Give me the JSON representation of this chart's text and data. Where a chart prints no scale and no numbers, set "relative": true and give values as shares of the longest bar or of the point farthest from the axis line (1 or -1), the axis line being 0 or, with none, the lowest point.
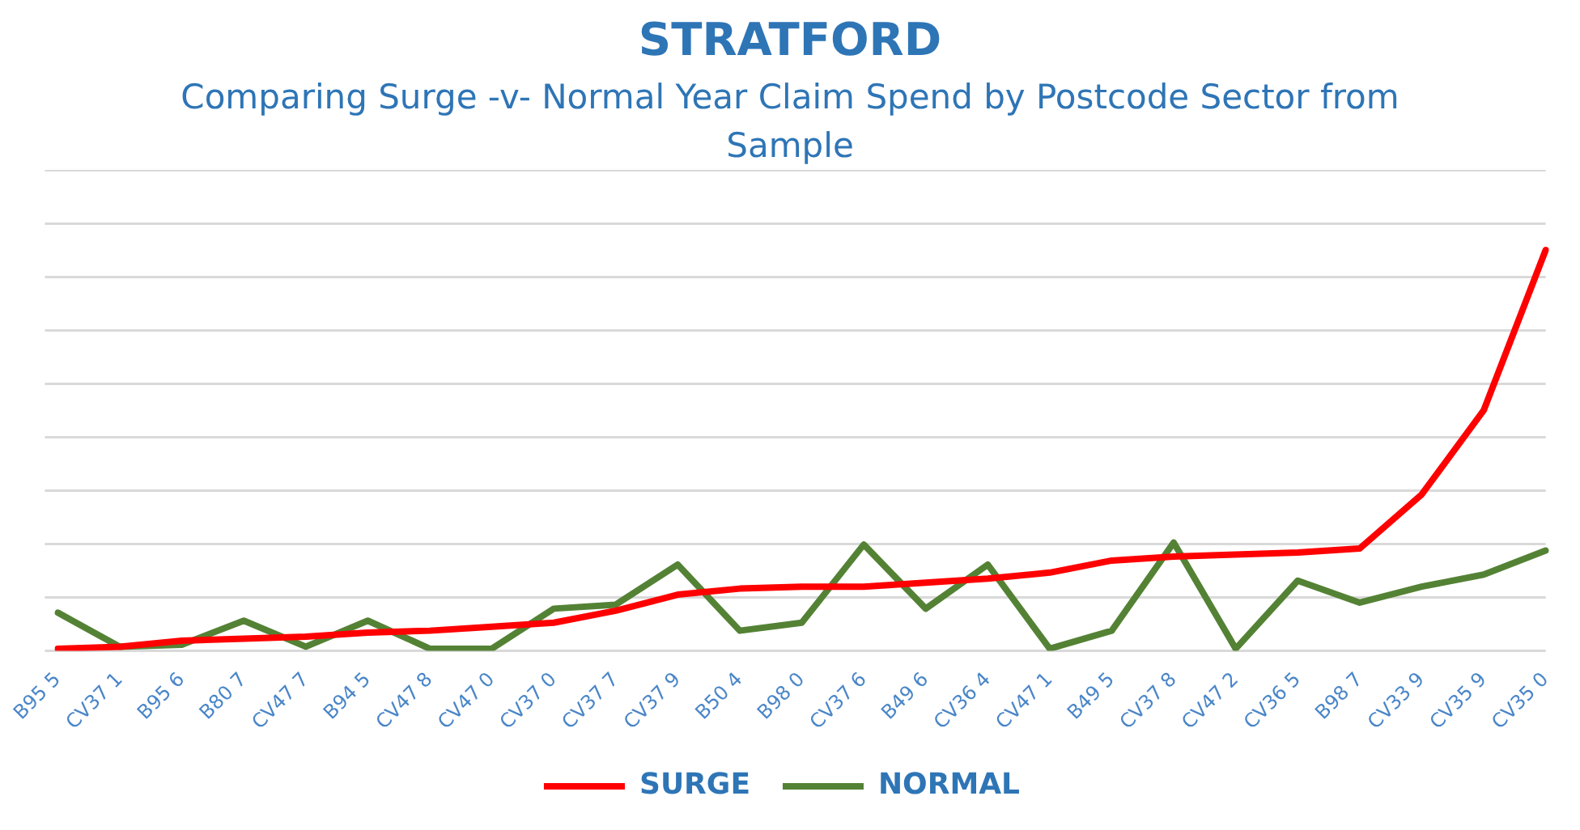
{
  "chart_data": {
    "type": "line",
    "title": "STRATFORD",
    "subtitle": "Comparing Surge -v- Normal Year Claim Spend by Postcode Sector from Sample",
    "categories": [
      "B95 5",
      "CV37 1",
      "B95 6",
      "B80 7",
      "CV47 7",
      "B94 5",
      "CV47 8",
      "CV47 0",
      "CV37 0",
      "CV37 7",
      "CV37 9",
      "B50 4",
      "B98 0",
      "CV37 6",
      "B49 6",
      "CV36 4",
      "CV47 1",
      "B49 5",
      "CV37 8",
      "CV47 2",
      "CV36 5",
      "B98 7",
      "CV33 9",
      "CV35 9",
      "CV35 0"
    ],
    "relative": true,
    "grid": "y",
    "legend": "bottom",
    "marker": "none",
    "line_style": "solid",
    "series": [
      {
        "name": "SURGE",
        "color": "#ff0000",
        "values": [
          0.005,
          0.01,
          0.025,
          0.03,
          0.035,
          0.045,
          0.05,
          0.06,
          0.07,
          0.1,
          0.14,
          0.155,
          0.16,
          0.16,
          0.17,
          0.18,
          0.195,
          0.225,
          0.235,
          0.24,
          0.245,
          0.255,
          0.39,
          0.6,
          1
        ]
      },
      {
        "name": "NORMAL",
        "color": "#548235",
        "values": [
          0.095,
          0.01,
          0.015,
          0.075,
          0.01,
          0.075,
          0.005,
          0.005,
          0.105,
          0.115,
          0.215,
          0.05,
          0.07,
          0.265,
          0.105,
          0.215,
          0.005,
          0.05,
          0.27,
          0.005,
          0.175,
          0.12,
          0.16,
          0.19,
          0.25
        ]
      }
    ]
  }
}
